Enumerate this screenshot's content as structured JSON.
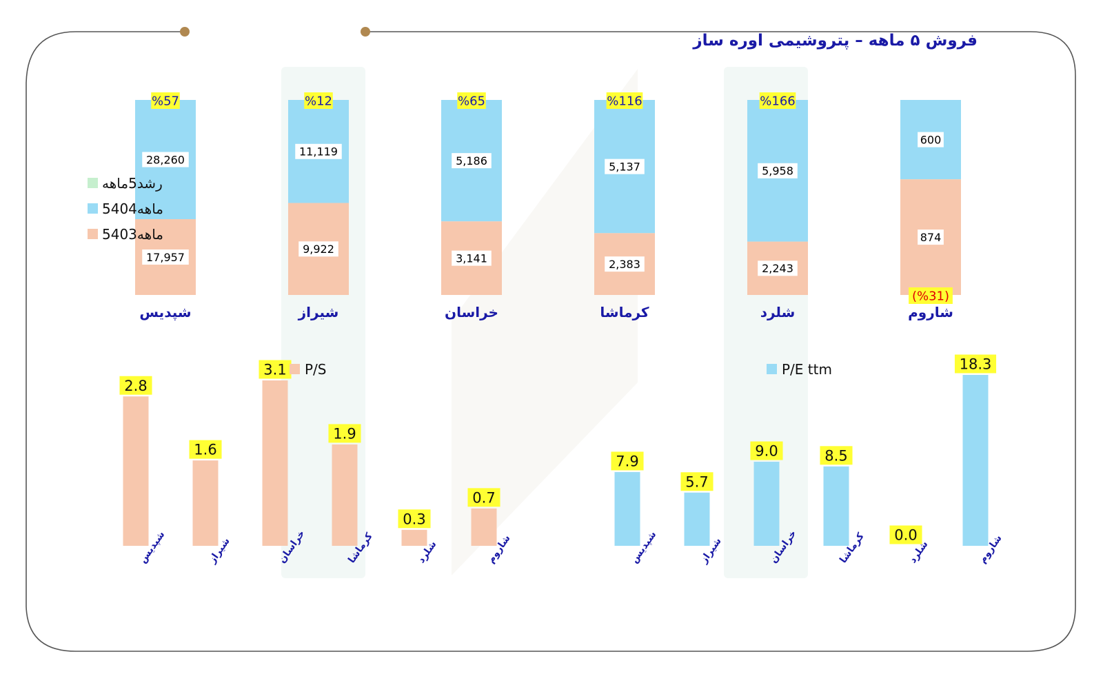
{
  "title": "فروش ۵ ماهه – پتروشیمی اوره ساز",
  "colors": {
    "prev": "#f7c7ad",
    "curr": "#99dbf5",
    "growth": "#c6efce",
    "highlight": "#ffff33",
    "label_blue": "#1a1aa6",
    "negative": "#e00000"
  },
  "chart_data": [
    {
      "type": "bar",
      "stacked": true,
      "categories": [
        "شپدیس",
        "شیراز",
        "خراسان",
        "کرماشا",
        "شلرد",
        "شاروم"
      ],
      "series": [
        {
          "name": "5ماهه403",
          "values": [
            17957,
            9922,
            3141,
            2383,
            2243,
            874
          ]
        },
        {
          "name": "5ماهه404",
          "values": [
            28260,
            11119,
            5186,
            5137,
            5958,
            600
          ]
        }
      ],
      "value_labels": {
        "5ماهه403": [
          "17,957",
          "9,922",
          "3,141",
          "2,383",
          "2,243",
          "874"
        ],
        "5ماهه404": [
          "28,260",
          "11,119",
          "5,186",
          "5,137",
          "5,958",
          "600"
        ]
      },
      "growth": {
        "name": "رشد5ماهه",
        "values": [
          57,
          12,
          65,
          116,
          166,
          -31
        ],
        "labels": [
          "%57",
          "%12",
          "%65",
          "%116",
          "%166",
          "(%31)"
        ]
      },
      "legend": [
        "رشد5ماهه",
        "5ماهه404",
        "5ماهه403"
      ],
      "normalized": true
    },
    {
      "type": "bar",
      "series_name": "P/S",
      "categories": [
        "شپدیس",
        "شیراز",
        "خراسان",
        "کرماشا",
        "شلرد",
        "شاروم"
      ],
      "values": [
        2.8,
        1.6,
        3.1,
        1.9,
        0.3,
        0.7
      ],
      "labels": [
        "2.8",
        "1.6",
        "3.1",
        "1.9",
        "0.3",
        "0.7"
      ],
      "ylim": [
        0,
        3.1
      ]
    },
    {
      "type": "bar",
      "series_name": "P/E ttm",
      "categories": [
        "شپدیس",
        "شیراز",
        "خراسان",
        "کرماشا",
        "شلرد",
        "شاروم"
      ],
      "values": [
        7.9,
        5.7,
        9.0,
        8.5,
        0.0,
        18.3
      ],
      "labels": [
        "7.9",
        "5.7",
        "9.0",
        "8.5",
        "0.0",
        "18.3"
      ],
      "ylim": [
        0,
        18.3
      ]
    }
  ]
}
